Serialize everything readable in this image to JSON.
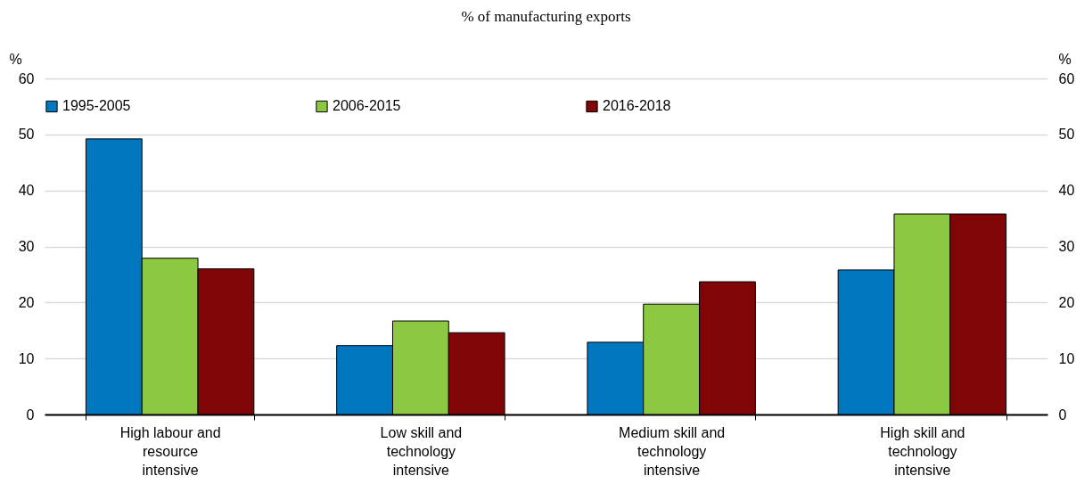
{
  "chart_data": {
    "type": "bar",
    "title": "% of manufacturing exports",
    "ylabel": "%",
    "y2label": "%",
    "categories": [
      "High labour and resource intensive",
      "Low skill and technology intensive",
      "Medium skill and technology intensive",
      "High skill and technology intensive"
    ],
    "series": [
      {
        "name": "1995-2005",
        "color": "#0077bf",
        "values": [
          49.2,
          12.3,
          12.9,
          25.8
        ]
      },
      {
        "name": "2006-2015",
        "color": "#8cc841",
        "values": [
          27.9,
          16.7,
          19.7,
          35.8
        ]
      },
      {
        "name": "2016-2018",
        "color": "#7f0506",
        "values": [
          26.0,
          14.6,
          23.7,
          35.8
        ]
      }
    ],
    "ylim": [
      0,
      60
    ],
    "yticks": [
      0,
      10,
      20,
      30,
      40,
      50,
      60
    ],
    "y2lim": [
      0,
      60
    ],
    "y2ticks": [
      0,
      10,
      20,
      30,
      40,
      50,
      60
    ],
    "grid": "y",
    "legend": "top"
  }
}
